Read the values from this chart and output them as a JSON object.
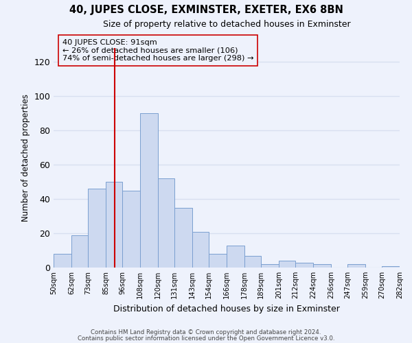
{
  "title": "40, JUPES CLOSE, EXMINSTER, EXETER, EX6 8BN",
  "subtitle": "Size of property relative to detached houses in Exminster",
  "xlabel": "Distribution of detached houses by size in Exminster",
  "ylabel": "Number of detached properties",
  "bar_color": "#cdd9f0",
  "bar_edge_color": "#7a9fd0",
  "vline_x": 91,
  "vline_color": "#cc0000",
  "bins": [
    50,
    62,
    73,
    85,
    96,
    108,
    120,
    131,
    143,
    154,
    166,
    178,
    189,
    201,
    212,
    224,
    236,
    247,
    259,
    270,
    282
  ],
  "tick_labels": [
    "50sqm",
    "62sqm",
    "73sqm",
    "85sqm",
    "96sqm",
    "108sqm",
    "120sqm",
    "131sqm",
    "143sqm",
    "154sqm",
    "166sqm",
    "178sqm",
    "189sqm",
    "201sqm",
    "212sqm",
    "224sqm",
    "236sqm",
    "247sqm",
    "259sqm",
    "270sqm",
    "282sqm"
  ],
  "bar_heights": [
    8,
    19,
    46,
    50,
    45,
    90,
    52,
    35,
    21,
    8,
    13,
    7,
    2,
    4,
    3,
    2,
    0,
    2,
    0,
    1
  ],
  "ylim": [
    0,
    128
  ],
  "yticks": [
    0,
    20,
    40,
    60,
    80,
    100,
    120
  ],
  "annotation_lines": [
    "40 JUPES CLOSE: 91sqm",
    "← 26% of detached houses are smaller (106)",
    "74% of semi-detached houses are larger (298) →"
  ],
  "footnote1": "Contains HM Land Registry data © Crown copyright and database right 2024.",
  "footnote2": "Contains public sector information licensed under the Open Government Licence v3.0.",
  "background_color": "#eef2fc",
  "grid_color": "#d8dff0"
}
